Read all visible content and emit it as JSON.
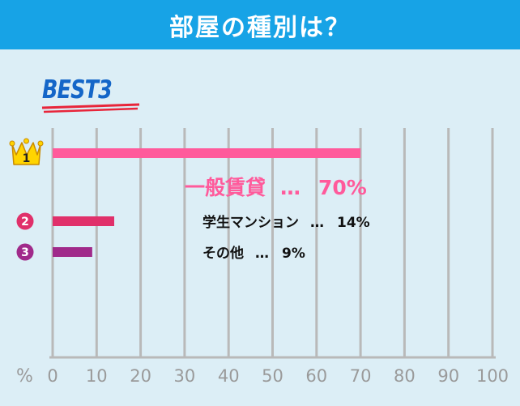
{
  "header": {
    "title": "部屋の種別は？"
  },
  "badge": {
    "text": "BEST3"
  },
  "colors": {
    "header_bg": "#17a3e6",
    "background": "#dceef6",
    "grid": "#b9b9b9",
    "rank1": "#ff5a9b",
    "rank2": "#e0306a",
    "rank3": "#a02a8a",
    "crown": "#ffd400",
    "badge_text": "#1466c8",
    "badge_underline": "#e8253a"
  },
  "chart_data": {
    "type": "bar",
    "orientation": "horizontal",
    "xlabel": "%",
    "xlim": [
      0,
      100
    ],
    "xticks": [
      "0",
      "10",
      "20",
      "30",
      "40",
      "50",
      "60",
      "70",
      "80",
      "90",
      "100"
    ],
    "grid": true,
    "series": [
      {
        "rank": "1",
        "label": "一般賃貸",
        "separator": "…",
        "value": 70,
        "value_label": "70%",
        "icon": "crown-icon"
      },
      {
        "rank": "2",
        "label": "学生マンション",
        "separator": "…",
        "value": 14,
        "value_label": "14%",
        "icon": "circle-number-icon"
      },
      {
        "rank": "3",
        "label": "その他",
        "separator": "…",
        "value": 9,
        "value_label": "9%",
        "icon": "circle-number-icon"
      }
    ]
  }
}
